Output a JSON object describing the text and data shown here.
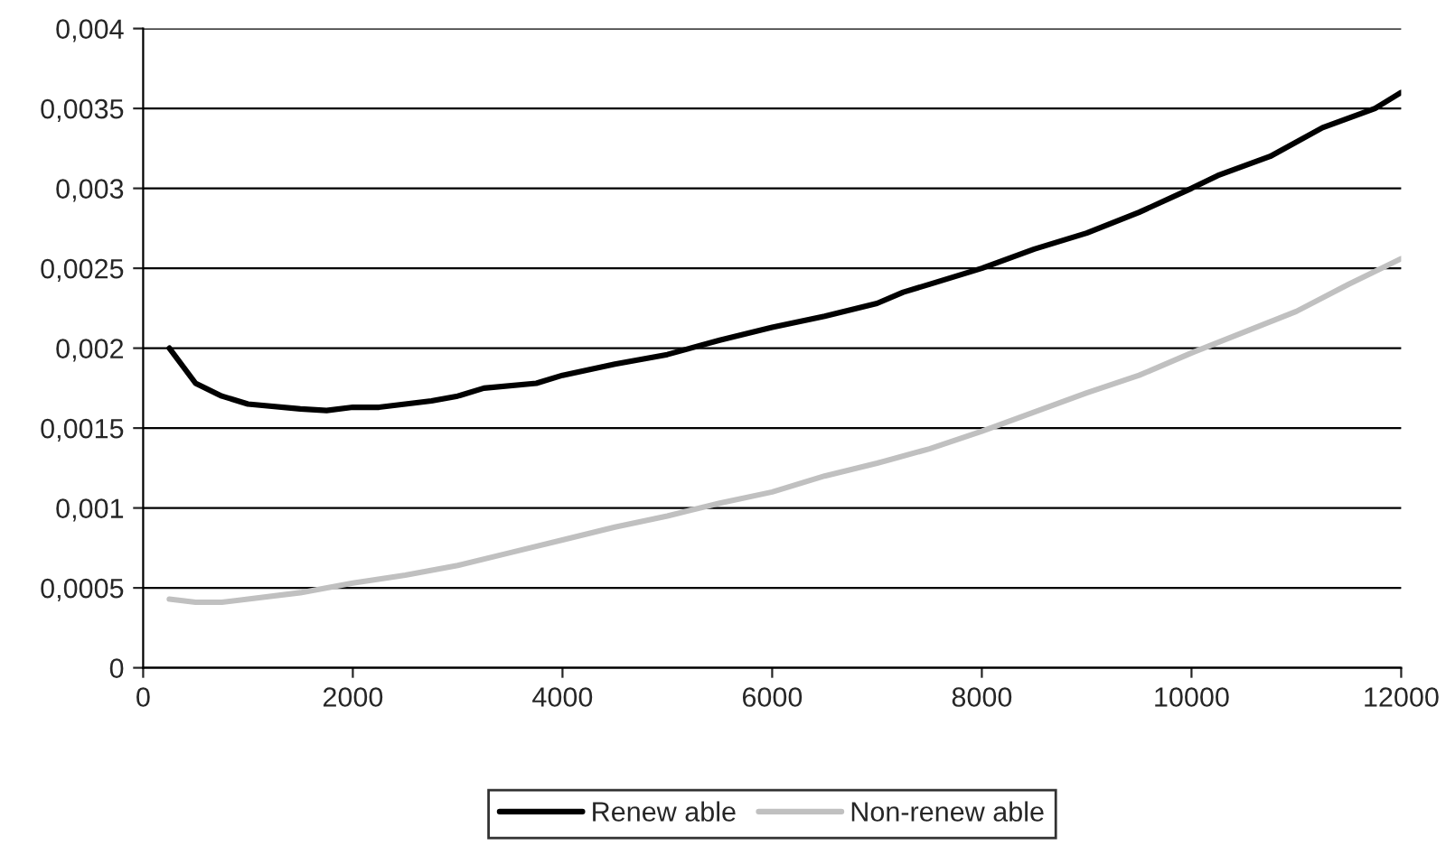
{
  "chart_data": {
    "type": "line",
    "x": [
      250,
      500,
      750,
      1000,
      1500,
      1750,
      2000,
      2250,
      2750,
      3000,
      3250,
      3750,
      4000,
      4500,
      5000,
      5500,
      6000,
      6500,
      7000,
      7250,
      7500,
      8000,
      8500,
      9000,
      9500,
      10000,
      10250,
      10750,
      11250,
      11750,
      12000
    ],
    "series": [
      {
        "name": "Renew able",
        "color": "#000000",
        "values": [
          0.002,
          0.00178,
          0.0017,
          0.00165,
          0.00162,
          0.00161,
          0.00163,
          0.00163,
          0.00167,
          0.0017,
          0.00175,
          0.00178,
          0.00183,
          0.0019,
          0.00196,
          0.00205,
          0.00213,
          0.0022,
          0.00228,
          0.00235,
          0.0024,
          0.0025,
          0.00262,
          0.00272,
          0.00285,
          0.003,
          0.00308,
          0.0032,
          0.00338,
          0.0035,
          0.0036
        ]
      },
      {
        "name": "Non-renew able",
        "color": "#c0c0c0",
        "x": [
          250,
          500,
          750,
          1000,
          1500,
          2000,
          2500,
          3000,
          3500,
          4000,
          4500,
          5000,
          5500,
          6000,
          6500,
          7000,
          7500,
          8000,
          8500,
          9000,
          9500,
          10000,
          10500,
          11000,
          11500,
          12000
        ],
        "values": [
          0.00043,
          0.00041,
          0.00041,
          0.00043,
          0.00047,
          0.00053,
          0.00058,
          0.00064,
          0.00072,
          0.0008,
          0.00088,
          0.00095,
          0.00103,
          0.0011,
          0.0012,
          0.00128,
          0.00137,
          0.00148,
          0.0016,
          0.00172,
          0.00183,
          0.00197,
          0.0021,
          0.00223,
          0.0024,
          0.00256
        ]
      }
    ],
    "xlim": [
      0,
      12000
    ],
    "xticks": [
      0,
      2000,
      4000,
      6000,
      8000,
      10000,
      12000
    ],
    "ylim": [
      0,
      0.004
    ],
    "yticks": [
      0,
      {
        "value": 0.0005,
        "label": "0,0005"
      },
      {
        "value": 0.001,
        "label": "0,001"
      },
      {
        "value": 0.0015,
        "label": "0,0015"
      },
      {
        "value": 0.002,
        "label": "0,002"
      },
      {
        "value": 0.0025,
        "label": "0,0025"
      },
      {
        "value": 0.003,
        "label": "0,003"
      },
      {
        "value": 0.0035,
        "label": "0,0035"
      },
      {
        "value": 0.004,
        "label": "0,004"
      }
    ],
    "grid": "y",
    "legend": "bottom",
    "line_style": "solid"
  }
}
